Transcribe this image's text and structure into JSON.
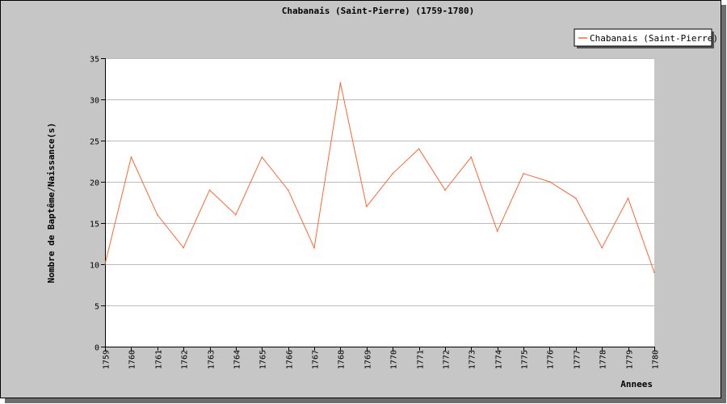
{
  "chart_data": {
    "type": "line",
    "title": "Chabanais (Saint-Pierre) (1759-1780)",
    "xlabel": "Annees",
    "ylabel": "Nombre de Baptême/Naissance(s)",
    "ylim": [
      0,
      35
    ],
    "yticks": [
      0,
      5,
      10,
      15,
      20,
      25,
      30,
      35
    ],
    "grid": true,
    "legend_position": "top-right",
    "categories": [
      "1759",
      "1760",
      "1761",
      "1762",
      "1763",
      "1764",
      "1765",
      "1766",
      "1767",
      "1768",
      "1769",
      "1770",
      "1771",
      "1772",
      "1773",
      "1774",
      "1775",
      "1776",
      "1777",
      "1778",
      "1779",
      "1780"
    ],
    "series": [
      {
        "name": "Chabanais (Saint-Pierre)",
        "color": "#ff6633",
        "values": [
          10,
          23,
          16,
          12,
          19,
          16,
          23,
          19,
          12,
          32,
          17,
          21,
          24,
          19,
          23,
          14,
          21,
          20,
          18,
          12,
          18,
          9
        ]
      }
    ]
  }
}
